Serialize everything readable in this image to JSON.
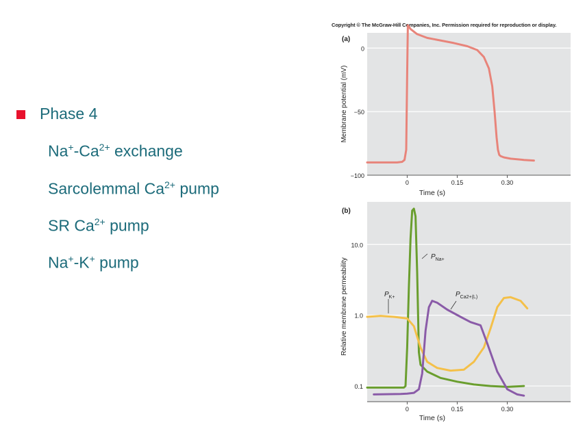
{
  "slide": {
    "heading": "Phase 4",
    "items": [
      {
        "pre": "Na",
        "sup1": "+",
        "mid": "-Ca",
        "sup2": "2+",
        "post": " exchange"
      },
      {
        "pre": "Sarcolemmal Ca",
        "sup1": "2+",
        "mid": " pump",
        "sup2": "",
        "post": ""
      },
      {
        "pre": "SR Ca",
        "sup1": "2+",
        "mid": " pump",
        "sup2": "",
        "post": ""
      },
      {
        "pre": "Na",
        "sup1": "+",
        "mid": "-K",
        "sup2": "+",
        "post": " pump"
      }
    ],
    "colors": {
      "bullet": "#e8112d",
      "text": "#1c6b7a"
    }
  },
  "figure": {
    "copyright": "Copyright © The McGraw-Hill Companies, Inc. Permission required for reproduction or display."
  },
  "chart_data": [
    {
      "type": "line",
      "panel": "(a)",
      "xlabel": "Time (s)",
      "ylabel": "Membrane potential (mV)",
      "xticks": [
        0,
        0.15,
        0.3
      ],
      "xtick_labels": [
        "0",
        "0.15",
        "0.30"
      ],
      "yticks": [
        0,
        -50,
        -100
      ],
      "ytick_labels": [
        "0",
        "−50",
        "−100"
      ],
      "xlim": [
        -0.12,
        0.49
      ],
      "ylim": [
        -100,
        12
      ],
      "grid": true,
      "series": [
        {
          "color": "#e8847a",
          "x": [
            -0.12,
            -0.03,
            -0.015,
            -0.008,
            -0.003,
            0.0,
            0.002,
            0.01,
            0.03,
            0.06,
            0.1,
            0.14,
            0.18,
            0.21,
            0.23,
            0.245,
            0.255,
            0.262,
            0.268,
            0.272,
            0.276,
            0.28,
            0.29,
            0.31,
            0.35,
            0.38
          ],
          "y": [
            -90,
            -90,
            -89.5,
            -88,
            -80,
            -20,
            18,
            15,
            11,
            8,
            6,
            4,
            1.5,
            -1.5,
            -7,
            -16,
            -30,
            -50,
            -70,
            -80,
            -84,
            -85,
            -86,
            -87,
            -88,
            -88.5
          ]
        }
      ]
    },
    {
      "type": "line",
      "panel": "(b)",
      "xlabel": "Time (s)",
      "ylabel": "Relative membrane permeability",
      "yscale": "log",
      "xticks": [
        0,
        0.15,
        0.3
      ],
      "xtick_labels": [
        "0",
        "0.15",
        "0.30"
      ],
      "yticks": [
        0.1,
        1.0,
        10.0
      ],
      "ytick_labels": [
        "0.1",
        "1.0",
        "10.0"
      ],
      "xlim": [
        -0.12,
        0.49
      ],
      "ylim": [
        0.06,
        40
      ],
      "grid": true,
      "series": [
        {
          "name_main": "P",
          "name_sub": "Na+",
          "color": "#6a9e2e",
          "x": [
            -0.12,
            -0.01,
            -0.005,
            0.0,
            0.005,
            0.01,
            0.015,
            0.02,
            0.025,
            0.03,
            0.035,
            0.04,
            0.06,
            0.1,
            0.15,
            0.2,
            0.25,
            0.3,
            0.35
          ],
          "y": [
            0.095,
            0.095,
            0.1,
            0.35,
            2.5,
            12,
            30,
            32,
            25,
            4,
            0.3,
            0.2,
            0.16,
            0.13,
            0.115,
            0.105,
            0.1,
            0.097,
            0.1
          ]
        },
        {
          "name_main": "P",
          "name_sub": "K+",
          "color": "#f4c049",
          "x": [
            -0.12,
            -0.08,
            -0.04,
            0.0,
            0.02,
            0.04,
            0.06,
            0.09,
            0.13,
            0.17,
            0.2,
            0.23,
            0.25,
            0.27,
            0.29,
            0.31,
            0.34,
            0.36
          ],
          "y": [
            0.95,
            0.98,
            0.95,
            0.9,
            0.7,
            0.35,
            0.22,
            0.18,
            0.165,
            0.17,
            0.22,
            0.35,
            0.65,
            1.3,
            1.75,
            1.8,
            1.6,
            1.25
          ]
        },
        {
          "name_main": "P",
          "name_sub": "Ca2+(L)",
          "color": "#8a5ba8",
          "x": [
            -0.1,
            -0.02,
            0.0,
            0.02,
            0.035,
            0.045,
            0.055,
            0.065,
            0.075,
            0.09,
            0.12,
            0.16,
            0.19,
            0.22,
            0.24,
            0.27,
            0.3,
            0.33,
            0.35
          ],
          "y": [
            0.076,
            0.077,
            0.078,
            0.08,
            0.09,
            0.15,
            0.6,
            1.3,
            1.6,
            1.5,
            1.2,
            0.95,
            0.8,
            0.72,
            0.4,
            0.16,
            0.09,
            0.076,
            0.073
          ]
        }
      ]
    }
  ]
}
